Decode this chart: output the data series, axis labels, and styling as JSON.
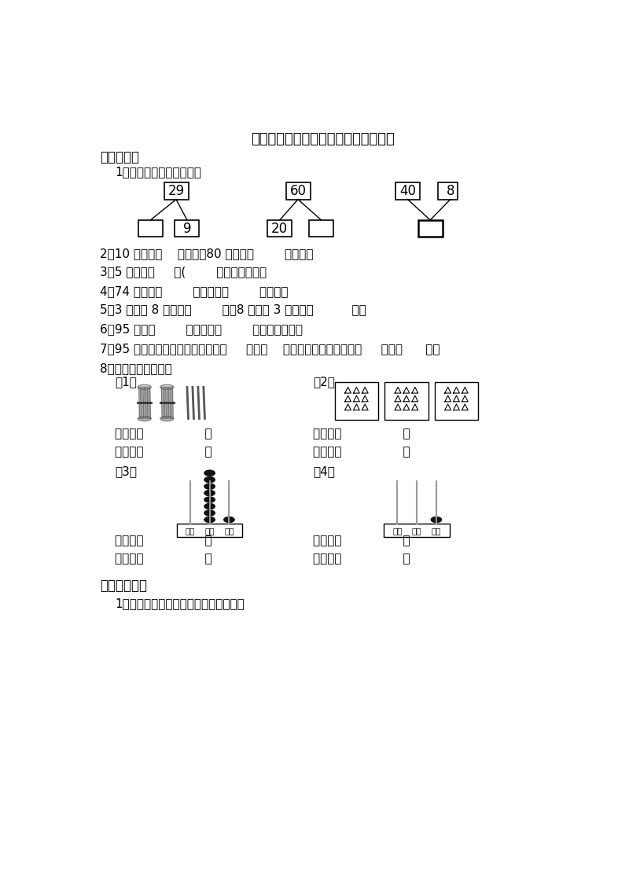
{
  "title": "西师大版一年级数学下册一单元检测题",
  "bg_color": "#ffffff",
  "section1": "一、填空。",
  "q1_label": "1、在口里填上适当的数。",
  "q2": "2、10 里面有（    ）个一，80 里面有（        ）个十。",
  "q3": "3、5 个十是（     ）(        ）个十是一百。",
  "q4": "4、74 里面有（        ）个十和（        ）个一。",
  "q5": "5、3 个十和 8 个一是（        ），8 个十和 3 个一是（          ）。",
  "q6": "6、95 是由（        ）个十和（        ）个一组成的。",
  "q7": "7、95 这个数，十位上的数字表示（     ）个（    ），个位上的数字表示（     ）个（      ）。",
  "q8_label": "8、看图读数，写数。",
  "section2": "二、比一比。",
  "q2_1": "1、把下面的数按从小到大的顺序排列。"
}
